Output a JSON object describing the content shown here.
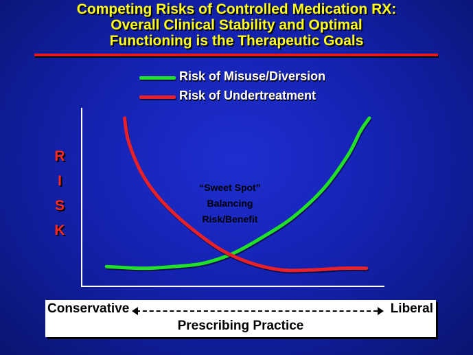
{
  "title": {
    "line1": "Competing Risks of Controlled Medication RX:",
    "line2": "Overall Clinical Stability and Optimal",
    "line3": "Functioning is the Therapeutic Goals"
  },
  "colors": {
    "title": "#ffff1a",
    "misuse": "#22e02a",
    "undertreatment": "#e8202a",
    "risk_letters": "#ff2a1a"
  },
  "chart_data": {
    "type": "line",
    "title": "",
    "xlabel": "Prescribing Practice",
    "ylabel": "RISK",
    "ylabel_letters": [
      "R",
      "I",
      "S",
      "K"
    ],
    "x_range": [
      0,
      100
    ],
    "y_range": [
      0,
      100
    ],
    "x_endpoints": {
      "left": "Conservative",
      "right": "Liberal"
    },
    "legend": [
      {
        "label": "Risk of Misuse/Diversion",
        "color": "#22e02a"
      },
      {
        "label": "Risk of Undertreatment",
        "color": "#e8202a"
      }
    ],
    "series": [
      {
        "name": "Risk of Misuse/Diversion",
        "color": "#22e02a",
        "x": [
          8,
          20,
          30,
          40,
          50,
          60,
          70,
          80,
          88,
          92,
          95
        ],
        "y": [
          11,
          10,
          11,
          13,
          19,
          29,
          41,
          58,
          78,
          92,
          100
        ]
      },
      {
        "name": "Risk of Undertreatment",
        "color": "#e8202a",
        "x": [
          14,
          15,
          18,
          22,
          28,
          36,
          46,
          56,
          66,
          76,
          86,
          94
        ],
        "y": [
          100,
          88,
          73,
          60,
          47,
          34,
          21,
          13,
          9,
          9,
          10,
          10
        ]
      }
    ],
    "annotations": [
      {
        "lines": [
          "“Sweet Spot”",
          "Balancing",
          "Risk/Benefit"
        ]
      }
    ]
  }
}
